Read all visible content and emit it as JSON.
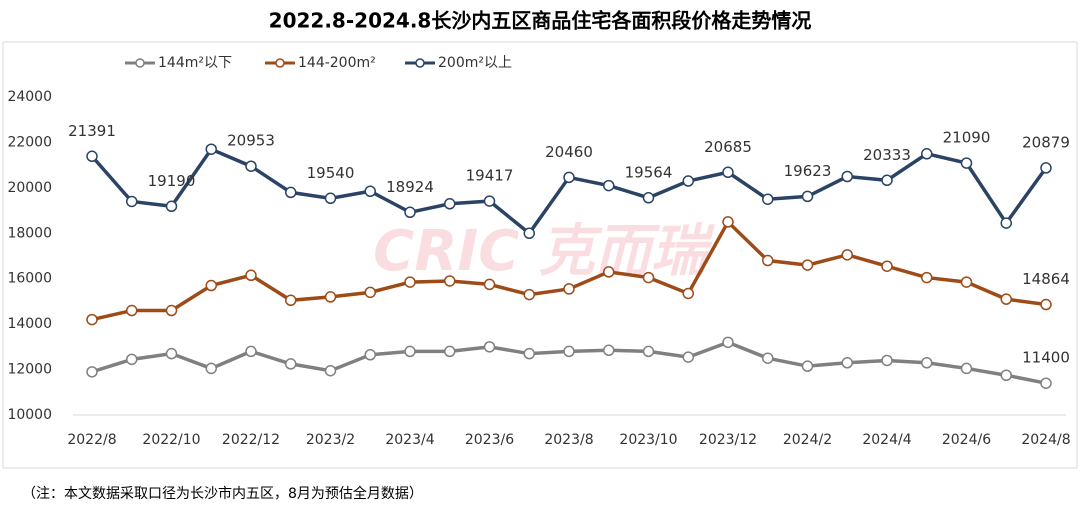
{
  "chart_data": {
    "type": "line",
    "title": "2022.8-2024.8长沙内五区商品住宅各面积段价格走势情况",
    "watermark": "CRIC 克而瑞",
    "note": "（注：本文数据采取口径为长沙市内五区，8月为预估全月数据）",
    "categories": [
      "2022/8",
      null,
      "2022/10",
      null,
      "2022/12",
      null,
      "2023/2",
      null,
      "2023/4",
      null,
      "2023/6",
      null,
      "2023/8",
      null,
      "2023/10",
      null,
      "2023/12",
      null,
      "2024/2",
      null,
      "2024/4",
      null,
      "2024/6",
      null,
      "2024/8"
    ],
    "series": [
      {
        "name": "144m²以下",
        "color": "#808080",
        "values": [
          11900,
          12450,
          12700,
          12050,
          12800,
          12250,
          11950,
          12650,
          12800,
          12800,
          13000,
          12700,
          12800,
          12850,
          12800,
          12550,
          13200,
          12500,
          12150,
          12300,
          12400,
          12300,
          12050,
          11750,
          11400
        ],
        "value_labels": [
          null,
          null,
          null,
          null,
          null,
          null,
          null,
          null,
          null,
          null,
          null,
          null,
          null,
          null,
          null,
          null,
          null,
          null,
          null,
          null,
          null,
          null,
          null,
          null,
          "11400"
        ]
      },
      {
        "name": "144-200m²",
        "color": "#9e4b17",
        "values": [
          14200,
          14600,
          14600,
          15700,
          16150,
          15050,
          15200,
          15400,
          15850,
          15900,
          15750,
          15300,
          15550,
          16300,
          16050,
          15350,
          18500,
          16800,
          16600,
          17050,
          16550,
          16050,
          15850,
          15100,
          14864
        ],
        "value_labels": [
          null,
          null,
          null,
          null,
          null,
          null,
          null,
          null,
          null,
          null,
          null,
          null,
          null,
          null,
          null,
          null,
          null,
          null,
          null,
          null,
          null,
          null,
          null,
          null,
          "14864"
        ]
      },
      {
        "name": "200m²以上",
        "color": "#2b4466",
        "values": [
          21391,
          19400,
          19190,
          21700,
          20953,
          19800,
          19540,
          19850,
          18924,
          19300,
          19417,
          18000,
          20460,
          20100,
          19564,
          20300,
          20685,
          19500,
          19623,
          20500,
          20333,
          21500,
          21090,
          18450,
          20879
        ],
        "value_labels": [
          "21391",
          null,
          "19190",
          null,
          "20953",
          null,
          "19540",
          null,
          "18924",
          null,
          "19417",
          null,
          "20460",
          null,
          "19564",
          null,
          "20685",
          null,
          "19623",
          null,
          "20333",
          null,
          "21090",
          null,
          "20879"
        ]
      }
    ],
    "ylim": [
      10000,
      24000
    ],
    "yticks": [
      10000,
      12000,
      14000,
      16000,
      18000,
      20000,
      22000,
      24000
    ],
    "grid": false,
    "legend": "top-left"
  }
}
